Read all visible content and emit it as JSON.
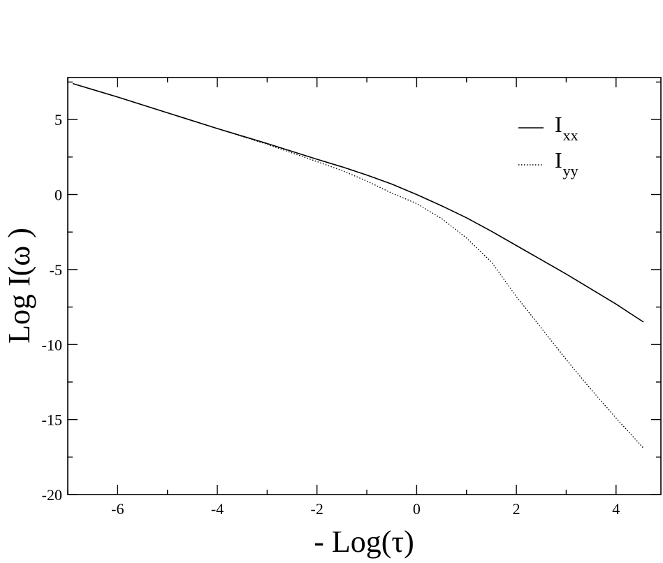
{
  "chart_data": {
    "type": "line",
    "title": "",
    "xlabel": "- Log(τ)",
    "ylabel": "Log I(ω )",
    "xlim": [
      -7,
      4.9
    ],
    "ylim": [
      -20,
      7.8
    ],
    "xticks": [
      -6,
      -4,
      -2,
      0,
      2,
      4
    ],
    "yticks": [
      5,
      0,
      -5,
      -10,
      -15,
      -20
    ],
    "grid": false,
    "legend_position": "top-right",
    "series": [
      {
        "name": "I",
        "name_sub": "xx",
        "style": "solid",
        "x": [
          -6.9,
          -6,
          -5,
          -4,
          -3,
          -2,
          -1.5,
          -1,
          -0.5,
          0,
          0.5,
          1,
          1.5,
          2,
          2.5,
          3,
          3.5,
          4,
          4.55
        ],
        "y": [
          7.4,
          6.5,
          5.45,
          4.4,
          3.4,
          2.35,
          1.85,
          1.3,
          0.7,
          0.0,
          -0.75,
          -1.55,
          -2.45,
          -3.4,
          -4.35,
          -5.3,
          -6.3,
          -7.3,
          -8.5
        ]
      },
      {
        "name": "I",
        "name_sub": "yy",
        "style": "dotted",
        "x": [
          -6.9,
          -6,
          -5,
          -4,
          -3,
          -2,
          -1.5,
          -1,
          -0.5,
          0,
          0.5,
          1,
          1.5,
          2,
          2.5,
          3,
          3.5,
          4,
          4.55
        ],
        "y": [
          7.4,
          6.5,
          5.45,
          4.4,
          3.35,
          2.2,
          1.6,
          0.9,
          0.1,
          -0.6,
          -1.6,
          -2.9,
          -4.5,
          -6.8,
          -8.9,
          -11.0,
          -13.0,
          -14.9,
          -16.9
        ]
      }
    ]
  }
}
